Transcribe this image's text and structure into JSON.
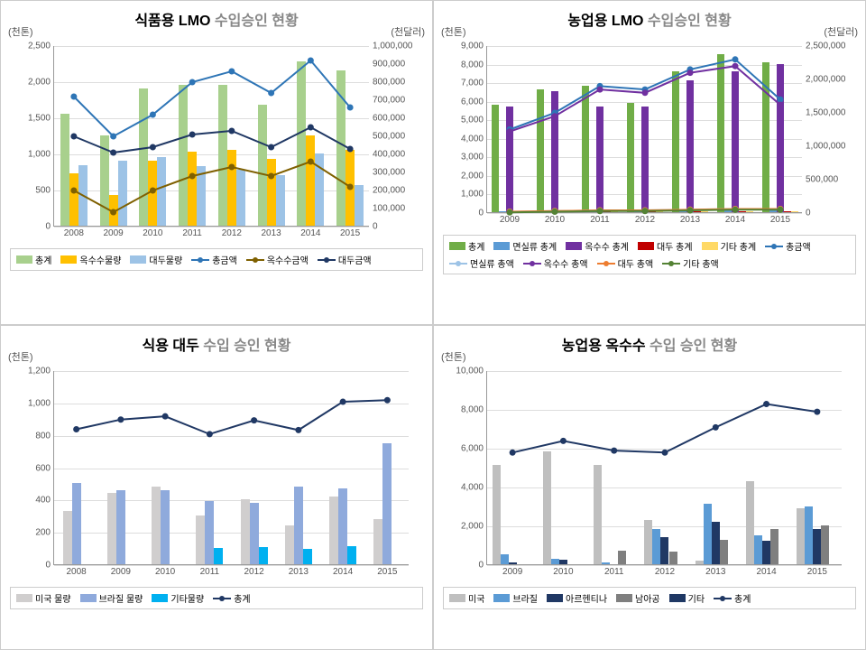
{
  "chart1": {
    "title_a": "식품용 LMO",
    "title_b": "수입승인 현황",
    "yleft_label": "(천톤)",
    "yright_label": "(천달러)",
    "x": [
      "2008",
      "2009",
      "2010",
      "2011",
      "2012",
      "2013",
      "2014",
      "2015"
    ],
    "ylim": [
      0,
      2500
    ],
    "ystep": 500,
    "yrlim": [
      0,
      1000000
    ],
    "yrstep": 100000,
    "bars": {
      "total": {
        "color": "#a8d08d",
        "values": [
          1550,
          1250,
          1900,
          1950,
          1950,
          1680,
          2280,
          2150
        ]
      },
      "corn_qty": {
        "color": "#ffc000",
        "values": [
          720,
          430,
          900,
          1020,
          1050,
          920,
          1250,
          1050
        ]
      },
      "soy_qty": {
        "color": "#9dc3e6",
        "values": [
          840,
          900,
          950,
          820,
          780,
          700,
          1000,
          560
        ]
      }
    },
    "lines": {
      "total_amt": {
        "color": "#2e75b6",
        "values": [
          720000,
          500000,
          620000,
          800000,
          860000,
          740000,
          920000,
          660000
        ]
      },
      "corn_amt": {
        "color": "#7f6000",
        "values": [
          200000,
          80000,
          200000,
          280000,
          330000,
          280000,
          360000,
          220000
        ]
      },
      "soy_amt": {
        "color": "#203864",
        "values": [
          500000,
          410000,
          440000,
          510000,
          530000,
          440000,
          550000,
          430000
        ]
      }
    },
    "legend": [
      {
        "label": "총계",
        "type": "bar",
        "color": "#a8d08d"
      },
      {
        "label": "옥수수물량",
        "type": "bar",
        "color": "#ffc000"
      },
      {
        "label": "대두물량",
        "type": "bar",
        "color": "#9dc3e6"
      },
      {
        "label": "총금액",
        "type": "line",
        "color": "#2e75b6"
      },
      {
        "label": "옥수수금액",
        "type": "line",
        "color": "#7f6000"
      },
      {
        "label": "대두금액",
        "type": "line",
        "color": "#203864"
      }
    ]
  },
  "chart2": {
    "title_a": "농업용 LMO",
    "title_b": "수입승인 현황",
    "yleft_label": "(천톤)",
    "yright_label": "(천달러)",
    "x": [
      "2009",
      "2010",
      "2011",
      "2012",
      "2013",
      "2014",
      "2015"
    ],
    "ylim": [
      0,
      9000
    ],
    "ystep": 1000,
    "yrlim": [
      0,
      2500000
    ],
    "yrstep": 500000,
    "bars": {
      "total": {
        "color": "#70ad47",
        "values": [
          5800,
          6600,
          6800,
          5900,
          7600,
          8500,
          8100
        ]
      },
      "cotton": {
        "color": "#5b9bd5",
        "values": [
          50,
          80,
          100,
          100,
          120,
          150,
          150
        ]
      },
      "corn": {
        "color": "#7030a0",
        "values": [
          5700,
          6500,
          5700,
          5700,
          7100,
          7600,
          8000
        ]
      },
      "soy": {
        "color": "#c00000",
        "values": [
          50,
          50,
          50,
          50,
          50,
          50,
          50
        ]
      },
      "etc": {
        "color": "#ffd966",
        "values": [
          50,
          50,
          50,
          50,
          50,
          50,
          50
        ]
      }
    },
    "lines": {
      "total_amt": {
        "color": "#2e75b6",
        "values": [
          1250000,
          1500000,
          1900000,
          1850000,
          2150000,
          2300000,
          1700000
        ]
      },
      "cotton_amt": {
        "color": "#9dc3e6",
        "values": [
          20000,
          30000,
          40000,
          40000,
          50000,
          60000,
          60000
        ]
      },
      "corn_amt": {
        "color": "#7030a0",
        "values": [
          1220000,
          1450000,
          1850000,
          1800000,
          2100000,
          2200000,
          1620000
        ]
      },
      "soy_amt": {
        "color": "#ed7d31",
        "values": [
          20000,
          30000,
          40000,
          40000,
          50000,
          60000,
          60000
        ]
      },
      "etc_amt": {
        "color": "#548235",
        "values": [
          10000,
          20000,
          30000,
          30000,
          40000,
          50000,
          50000
        ]
      }
    },
    "legend": [
      {
        "label": "총계",
        "type": "bar",
        "color": "#70ad47"
      },
      {
        "label": "면실류 총계",
        "type": "bar",
        "color": "#5b9bd5"
      },
      {
        "label": "옥수수 총계",
        "type": "bar",
        "color": "#7030a0"
      },
      {
        "label": "대두 총계",
        "type": "bar",
        "color": "#c00000"
      },
      {
        "label": "기타 총계",
        "type": "bar",
        "color": "#ffd966"
      },
      {
        "label": "총금액",
        "type": "line",
        "color": "#2e75b6"
      },
      {
        "label": "면실류 총액",
        "type": "line",
        "color": "#9dc3e6"
      },
      {
        "label": "옥수수 총액",
        "type": "line",
        "color": "#7030a0"
      },
      {
        "label": "대두 총액",
        "type": "line",
        "color": "#ed7d31"
      },
      {
        "label": "기타 총액",
        "type": "line",
        "color": "#548235"
      }
    ]
  },
  "chart3": {
    "title_a": "식용 대두",
    "title_b": "수입 승인 현황",
    "yleft_label": "(천톤)",
    "x": [
      "2008",
      "2009",
      "2010",
      "2011",
      "2012",
      "2013",
      "2014",
      "2015"
    ],
    "ylim": [
      0,
      1200
    ],
    "ystep": 200,
    "bars": {
      "usa": {
        "color": "#d0cece",
        "values": [
          330,
          440,
          480,
          300,
          400,
          240,
          420,
          280
        ]
      },
      "brazil": {
        "color": "#8faadc",
        "values": [
          500,
          460,
          460,
          390,
          380,
          480,
          470,
          750
        ]
      },
      "etc": {
        "color": "#00b0f0",
        "values": [
          0,
          0,
          0,
          100,
          105,
          95,
          110,
          0
        ]
      }
    },
    "lines": {
      "total": {
        "color": "#203864",
        "values": [
          840,
          900,
          920,
          810,
          895,
          835,
          1010,
          1020
        ]
      }
    },
    "legend": [
      {
        "label": "미국 물량",
        "type": "bar",
        "color": "#d0cece"
      },
      {
        "label": "브라질 물량",
        "type": "bar",
        "color": "#8faadc"
      },
      {
        "label": "기타물량",
        "type": "bar",
        "color": "#00b0f0"
      },
      {
        "label": "총계",
        "type": "line",
        "color": "#203864"
      }
    ]
  },
  "chart4": {
    "title_a": "농업용 옥수수",
    "title_b": "수입 승인 현황",
    "yleft_label": "(천톤)",
    "x": [
      "2009",
      "2010",
      "2011",
      "2012",
      "2013",
      "2014",
      "2015"
    ],
    "ylim": [
      0,
      10000
    ],
    "ystep": 2000,
    "bars": {
      "usa": {
        "color": "#bfbfbf",
        "values": [
          5100,
          5800,
          5100,
          2300,
          200,
          4300,
          2900
        ]
      },
      "brazil": {
        "color": "#5b9bd5",
        "values": [
          500,
          300,
          100,
          1800,
          3100,
          1500,
          3000
        ]
      },
      "arg": {
        "color": "#203864",
        "values": [
          100,
          250,
          0,
          1400,
          2200,
          1200,
          1800
        ]
      },
      "sa": {
        "color": "#7f7f7f",
        "values": [
          0,
          0,
          700,
          650,
          1250,
          1800,
          2000
        ]
      },
      "etc": {
        "color": "#1f3864",
        "values": [
          0,
          0,
          0,
          0,
          0,
          0,
          0
        ]
      }
    },
    "lines": {
      "total": {
        "color": "#203864",
        "values": [
          5800,
          6400,
          5900,
          5800,
          7100,
          8300,
          7900
        ]
      }
    },
    "legend": [
      {
        "label": "미국",
        "type": "bar",
        "color": "#bfbfbf"
      },
      {
        "label": "브라질",
        "type": "bar",
        "color": "#5b9bd5"
      },
      {
        "label": "아르헨티나",
        "type": "bar",
        "color": "#203864"
      },
      {
        "label": "남아공",
        "type": "bar",
        "color": "#7f7f7f"
      },
      {
        "label": "기타",
        "type": "bar",
        "color": "#1f3864"
      },
      {
        "label": "총계",
        "type": "line",
        "color": "#203864"
      }
    ]
  }
}
